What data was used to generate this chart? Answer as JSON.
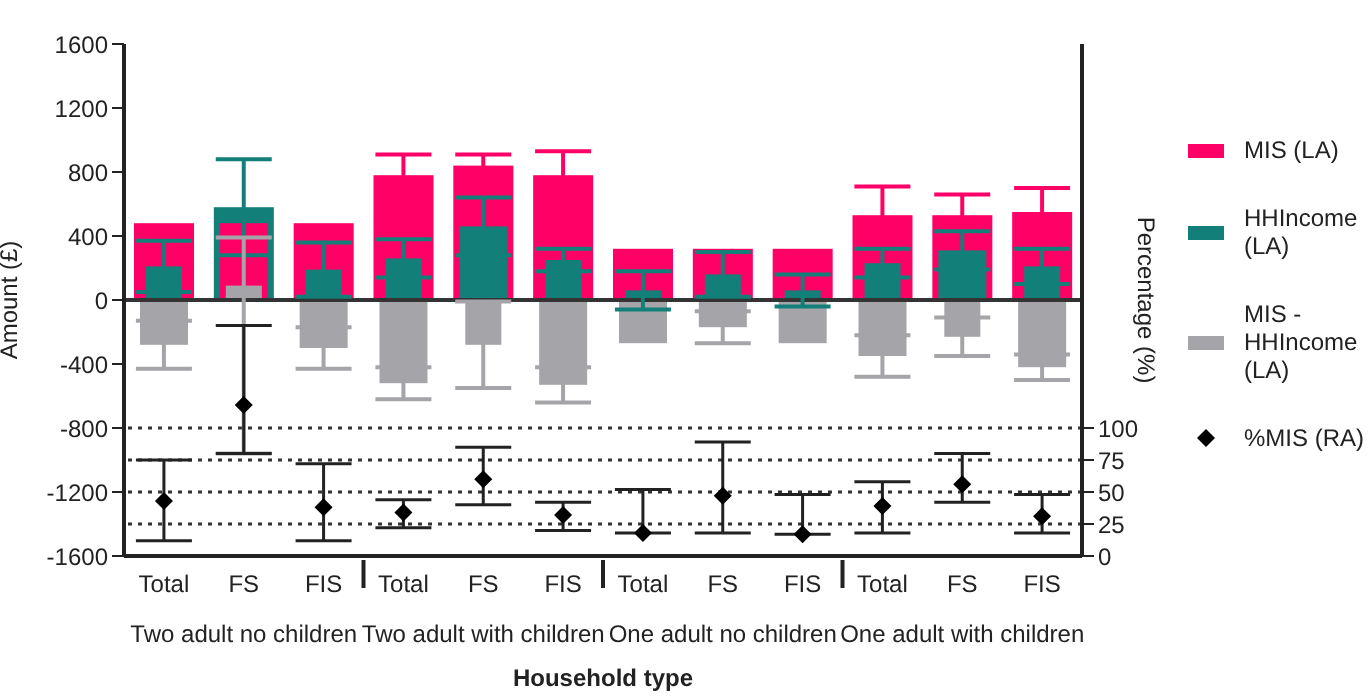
{
  "chart_data": {
    "type": "bar",
    "xlabel": "Household type",
    "ylabel": "Amount (£)",
    "y2label": "Percentage (%)",
    "categories": [
      "Total",
      "FS",
      "FIS",
      "Total",
      "FS",
      "FIS",
      "Total",
      "FS",
      "FIS",
      "Total",
      "FS",
      "FIS"
    ],
    "annotations": [
      "Two adult no children",
      "Two adult with children",
      "One adult no children",
      "One adult with children"
    ],
    "series": [
      {
        "name": "MIS (LA)",
        "color": "#ff0066",
        "values": [
          480,
          480,
          480,
          780,
          840,
          780,
          320,
          320,
          320,
          530,
          530,
          550
        ],
        "errors": [
          null,
          null,
          null,
          130,
          70,
          150,
          null,
          null,
          null,
          180,
          130,
          150
        ]
      },
      {
        "name": "HHIncome (LA)",
        "color": "#128079",
        "values": [
          210,
          580,
          190,
          260,
          460,
          250,
          60,
          160,
          60,
          230,
          310,
          210
        ],
        "errors": [
          160,
          300,
          170,
          120,
          180,
          70,
          120,
          140,
          100,
          90,
          120,
          110
        ]
      },
      {
        "name": "MIS - HHIncome (LA)",
        "color": "#a5a4a8",
        "values": [
          -280,
          90,
          -300,
          -520,
          -280,
          -530,
          -270,
          -170,
          -270,
          -350,
          -230,
          -420
        ],
        "errors": [
          150,
          [
            -960,
            390
          ],
          130,
          100,
          270,
          110,
          null,
          100,
          null,
          130,
          120,
          80
        ]
      },
      {
        "name": "%MIS (RA)",
        "type": "scatter",
        "axis": "y2",
        "color": "#000000",
        "values": [
          43,
          118,
          38,
          34,
          60,
          32,
          18,
          47,
          17,
          39,
          56,
          31
        ],
        "errors": [
          [
            12,
            75
          ],
          [
            80,
            180
          ],
          [
            12,
            72
          ],
          [
            22,
            44
          ],
          [
            40,
            85
          ],
          [
            20,
            42
          ],
          [
            18,
            52
          ],
          [
            18,
            89
          ],
          [
            17,
            48
          ],
          [
            18,
            58
          ],
          [
            42,
            80
          ],
          [
            18,
            48
          ]
        ]
      }
    ],
    "ylim": [
      -1600,
      1600
    ],
    "yticks": [
      -1600,
      -1200,
      -800,
      -400,
      0,
      400,
      800,
      1200,
      1600
    ],
    "y2lim": [
      0,
      400
    ],
    "y2ticks": [
      0,
      25,
      50,
      75,
      100
    ],
    "ref_lines": [
      {
        "axis": "y",
        "value": 0,
        "color": "#333333",
        "line_style": "solid"
      },
      {
        "axis": "y2",
        "value": 25,
        "color": "#333333",
        "line_style": "dotted"
      },
      {
        "axis": "y2",
        "value": 50,
        "color": "#333333",
        "line_style": "dotted"
      },
      {
        "axis": "y2",
        "value": 75,
        "color": "#333333",
        "line_style": "dotted"
      },
      {
        "axis": "y2",
        "value": 100,
        "color": "#333333",
        "line_style": "dotted"
      }
    ],
    "marker": "diamond",
    "legend": "right"
  }
}
